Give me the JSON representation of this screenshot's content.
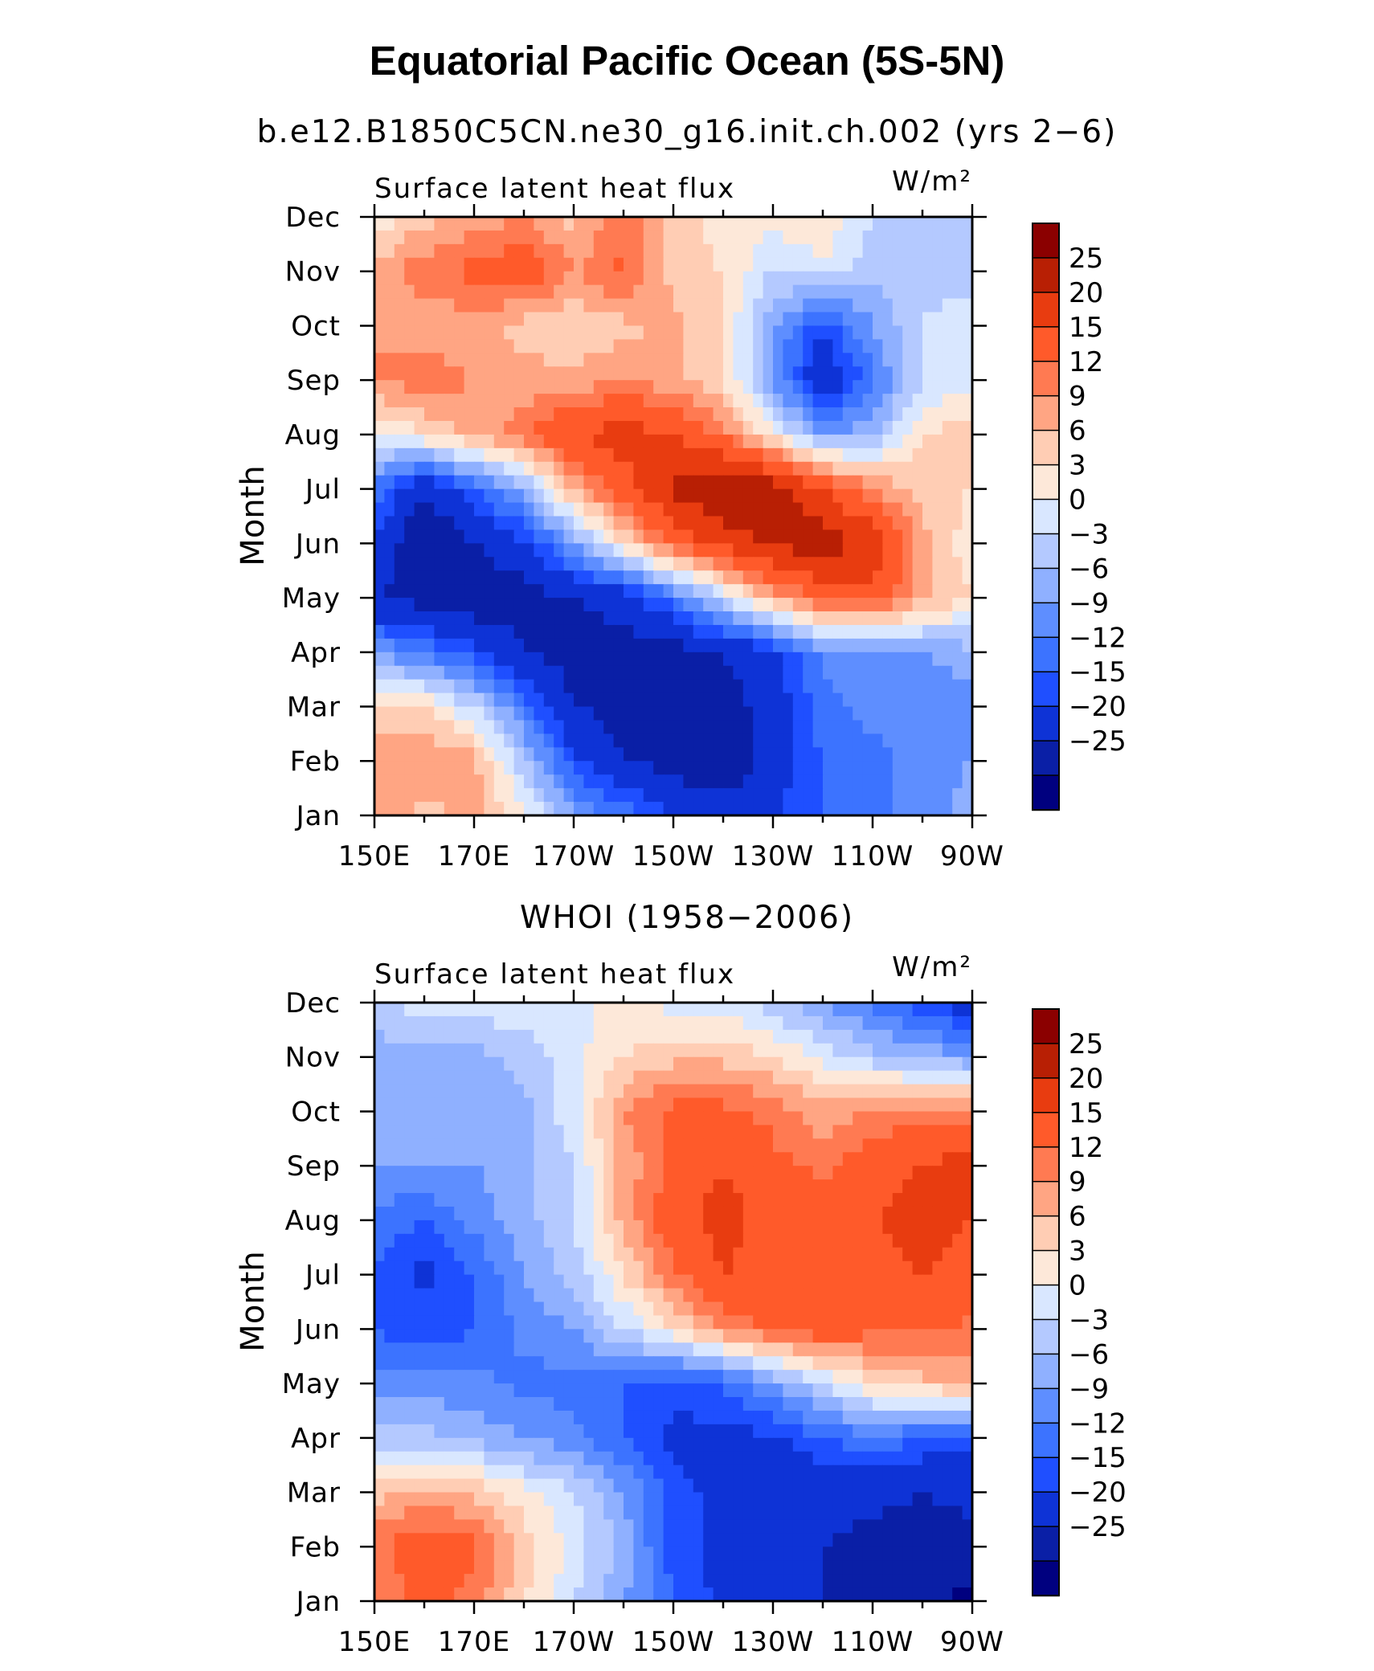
{
  "figure": {
    "title": "Equatorial Pacific Ocean (5S-5N)"
  },
  "colors": {
    "levels": [
      "#00007f",
      "#0a1fa6",
      "#0e33d6",
      "#1f4fff",
      "#3c73ff",
      "#5e8eff",
      "#8fb0ff",
      "#b4c9ff",
      "#d9e7ff",
      "#fde8d9",
      "#ffcdb4",
      "#ffa583",
      "#ff7a52",
      "#ff5a2a",
      "#e83c10",
      "#b81f04",
      "#8b0000"
    ]
  },
  "chart_data": [
    {
      "type": "heatmap",
      "title": "b.e12.B1850C5CN.ne30_g16.init.ch.002 (yrs 2−6)",
      "left_label": "Surface latent heat flux",
      "right_label": "W/m²",
      "ylabel": "Month",
      "xlabel": "",
      "x_tick_labels": [
        "150E",
        "170E",
        "170W",
        "150W",
        "130W",
        "110W",
        "90W"
      ],
      "x_lon_range": [
        150,
        270
      ],
      "y_tick_labels": [
        "Jan",
        "Feb",
        "Mar",
        "Apr",
        "May",
        "Jun",
        "Jul",
        "Aug",
        "Sep",
        "Oct",
        "Nov",
        "Dec"
      ],
      "colorbar_labels": [
        "25",
        "20",
        "15",
        "12",
        "9",
        "6",
        "3",
        "0",
        "−3",
        "−6",
        "−9",
        "−12",
        "−15",
        "−20",
        "−25"
      ],
      "colorbar_levels": [
        -25,
        -20,
        -15,
        -12,
        -9,
        -6,
        -3,
        0,
        3,
        6,
        9,
        12,
        15,
        20,
        25
      ],
      "lon": [
        150,
        160,
        170,
        180,
        190,
        200,
        210,
        220,
        230,
        240,
        250,
        260,
        270
      ],
      "months": [
        "Jan",
        "Feb",
        "Mar",
        "Apr",
        "May",
        "Jun",
        "Jul",
        "Aug",
        "Sep",
        "Oct",
        "Nov",
        "Dec"
      ],
      "z": [
        [
          10,
          8,
          10,
          4,
          -6,
          -10,
          -15,
          -18,
          -15,
          -12,
          -10,
          -8,
          -4
        ],
        [
          12,
          12,
          10,
          -2,
          -14,
          -20,
          -22,
          -24,
          -18,
          -12,
          -10,
          -8,
          -6
        ],
        [
          6,
          6,
          0,
          -10,
          -20,
          -22,
          -20,
          -22,
          -18,
          -10,
          -8,
          -9,
          -8
        ],
        [
          -6,
          -10,
          -14,
          -20,
          -22,
          -22,
          -22,
          -20,
          -16,
          -8,
          -6,
          -6,
          -4
        ],
        [
          -20,
          -22,
          -24,
          -22,
          -20,
          -18,
          -10,
          0,
          10,
          16,
          18,
          10,
          6
        ],
        [
          -15,
          -25,
          -20,
          -16,
          -6,
          6,
          16,
          22,
          26,
          28,
          24,
          10,
          4
        ],
        [
          -10,
          -20,
          -12,
          -4,
          10,
          18,
          26,
          30,
          28,
          20,
          12,
          8,
          6
        ],
        [
          2,
          6,
          10,
          14,
          20,
          22,
          20,
          14,
          4,
          -6,
          -4,
          6,
          8
        ],
        [
          12,
          14,
          12,
          10,
          10,
          12,
          10,
          6,
          -6,
          -20,
          -10,
          0,
          2
        ],
        [
          12,
          10,
          10,
          8,
          6,
          8,
          10,
          6,
          -6,
          -14,
          -6,
          0,
          3
        ],
        [
          10,
          14,
          16,
          18,
          12,
          16,
          8,
          6,
          0,
          2,
          -2,
          -2,
          -2
        ],
        [
          4,
          8,
          10,
          12,
          8,
          14,
          8,
          4,
          4,
          6,
          0,
          -2,
          -2
        ]
      ]
    },
    {
      "type": "heatmap",
      "title": "WHOI (1958−2006)",
      "left_label": "Surface latent heat flux",
      "right_label": "W/m²",
      "ylabel": "Month",
      "xlabel": "",
      "x_tick_labels": [
        "150E",
        "170E",
        "170W",
        "150W",
        "130W",
        "110W",
        "90W"
      ],
      "x_lon_range": [
        150,
        270
      ],
      "y_tick_labels": [
        "Jan",
        "Feb",
        "Mar",
        "Apr",
        "May",
        "Jun",
        "Jul",
        "Aug",
        "Sep",
        "Oct",
        "Nov",
        "Dec"
      ],
      "colorbar_labels": [
        "25",
        "20",
        "15",
        "12",
        "9",
        "6",
        "3",
        "0",
        "−3",
        "−6",
        "−9",
        "−12",
        "−15",
        "−20",
        "−25"
      ],
      "colorbar_levels": [
        -25,
        -20,
        -15,
        -12,
        -9,
        -6,
        -3,
        0,
        3,
        6,
        9,
        12,
        15,
        20,
        25
      ],
      "lon": [
        150,
        160,
        170,
        180,
        190,
        200,
        210,
        220,
        230,
        240,
        250,
        260,
        270
      ],
      "months": [
        "Jan",
        "Feb",
        "Mar",
        "Apr",
        "May",
        "Jun",
        "Jul",
        "Aug",
        "Sep",
        "Oct",
        "Nov",
        "Dec"
      ],
      "z": [
        [
          12,
          16,
          14,
          6,
          0,
          -6,
          -12,
          -16,
          -18,
          -20,
          -22,
          -24,
          -26
        ],
        [
          14,
          18,
          16,
          8,
          2,
          -4,
          -14,
          -16,
          -18,
          -20,
          -22,
          -24,
          -22
        ],
        [
          8,
          10,
          8,
          4,
          0,
          -6,
          -14,
          -16,
          -18,
          -18,
          -18,
          -20,
          -18
        ],
        [
          -2,
          -2,
          -4,
          -6,
          -8,
          -12,
          -16,
          -16,
          -16,
          -12,
          -10,
          -12,
          -14
        ],
        [
          -8,
          -8,
          -8,
          -10,
          -10,
          -12,
          -14,
          -12,
          -6,
          0,
          6,
          8,
          10
        ],
        [
          -12,
          -14,
          -12,
          -8,
          -6,
          0,
          6,
          12,
          16,
          18,
          16,
          16,
          14
        ],
        [
          -12,
          -16,
          -12,
          -6,
          -2,
          6,
          14,
          20,
          18,
          20,
          18,
          20,
          18
        ],
        [
          -10,
          -12,
          -8,
          -4,
          0,
          10,
          18,
          22,
          18,
          18,
          20,
          22,
          20
        ],
        [
          -6,
          -6,
          -6,
          -4,
          0,
          10,
          16,
          20,
          16,
          14,
          18,
          20,
          22
        ],
        [
          -6,
          -4,
          -6,
          -4,
          2,
          12,
          16,
          16,
          14,
          10,
          12,
          14,
          14
        ],
        [
          -4,
          -4,
          -4,
          -2,
          2,
          6,
          8,
          8,
          6,
          2,
          -2,
          -4,
          -6
        ],
        [
          -2,
          2,
          2,
          2,
          2,
          4,
          2,
          2,
          -2,
          -6,
          -10,
          -14,
          -18
        ]
      ]
    }
  ]
}
